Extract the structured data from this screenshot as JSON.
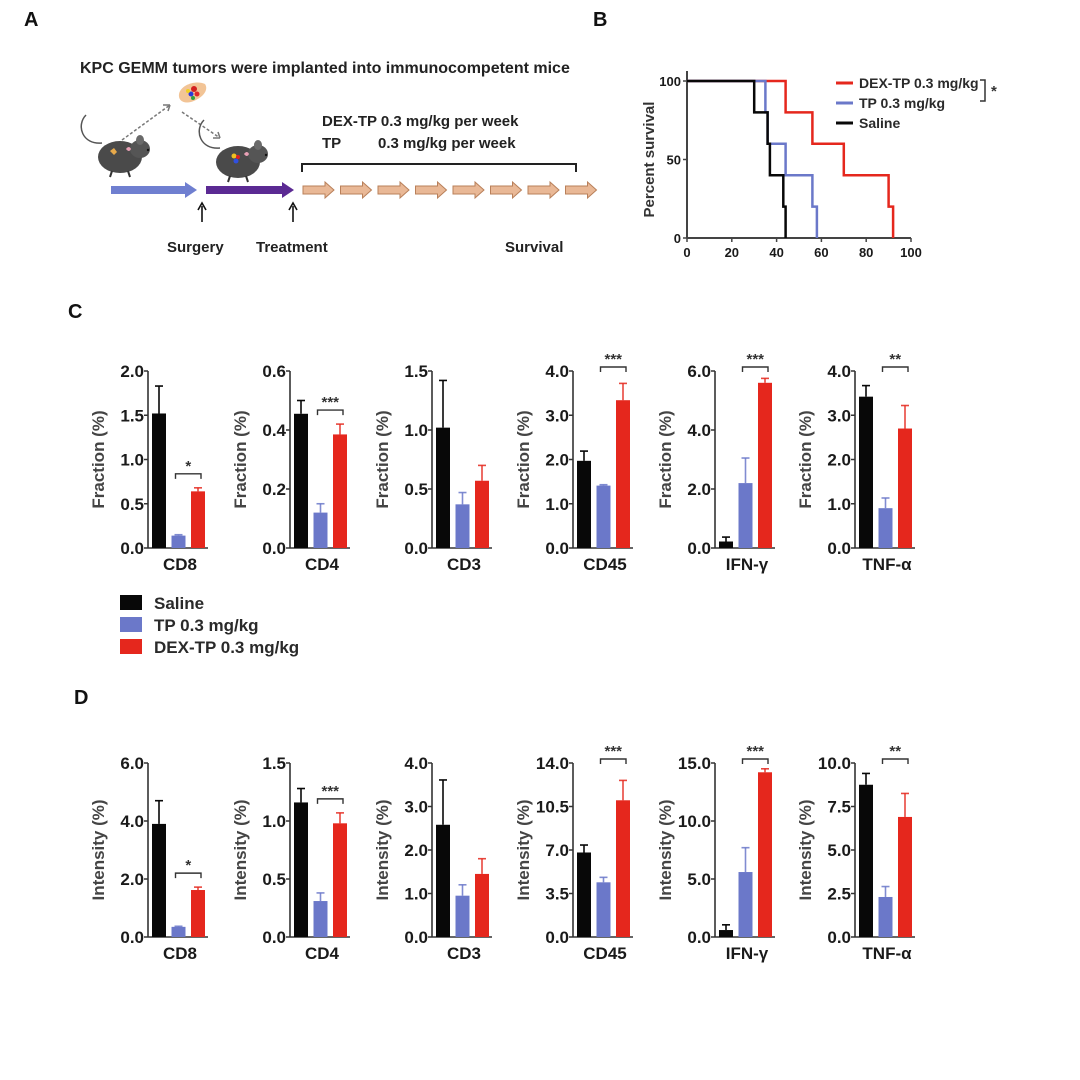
{
  "panels": {
    "A": "A",
    "B": "B",
    "C": "C",
    "D": "D"
  },
  "colors": {
    "saline": "#080808",
    "tp": "#6b78c9",
    "dex": "#e5271d",
    "arrow1": "#6f7fd0",
    "arrow2": "#5b2a93",
    "weekly_arrow": "#e9b896",
    "weekly_arrow_stroke": "#b9805a"
  },
  "schematic": {
    "title": "KPC GEMM tumors were implanted into immunocompetent mice",
    "dosing_line1": "DEX-TP 0.3 mg/kg per week",
    "dosing_line2_drug": "TP",
    "dosing_line2_dose": "0.3 mg/kg per week",
    "step_surgery": "Surgery",
    "step_treatment": "Treatment",
    "step_survival": "Survival",
    "weekly_doses": 8,
    "icons": [
      "mouse-icon",
      "tumor-icon",
      "mouse-icon"
    ]
  },
  "legend_c": [
    {
      "key": "saline",
      "label": "Saline"
    },
    {
      "key": "tp",
      "label": "TP 0.3 mg/kg"
    },
    {
      "key": "dex",
      "label": "DEX-TP 0.3 mg/kg"
    }
  ],
  "chart_data": [
    {
      "id": "B",
      "type": "line",
      "subtype": "kaplan-meier",
      "title": "",
      "xlabel": "",
      "ylabel": "Percent survival",
      "xlim": [
        0,
        100
      ],
      "ylim": [
        0,
        100
      ],
      "xticks": [
        "0",
        "20",
        "40",
        "60",
        "80",
        "100"
      ],
      "yticks": [
        "0",
        "50",
        "100"
      ],
      "legend_position": "top-right",
      "significance": "*",
      "series": [
        {
          "key": "dex",
          "name": "DEX-TP 0.3 mg/kg",
          "steps": [
            [
              0,
              100
            ],
            [
              44,
              100
            ],
            [
              44,
              80
            ],
            [
              56,
              80
            ],
            [
              56,
              60
            ],
            [
              70,
              60
            ],
            [
              70,
              40
            ],
            [
              90,
              40
            ],
            [
              90,
              20
            ],
            [
              92,
              20
            ],
            [
              92,
              0
            ]
          ]
        },
        {
          "key": "tp",
          "name": "TP 0.3 mg/kg",
          "steps": [
            [
              0,
              100
            ],
            [
              35,
              100
            ],
            [
              35,
              80
            ],
            [
              36,
              80
            ],
            [
              36,
              60
            ],
            [
              44,
              60
            ],
            [
              44,
              40
            ],
            [
              56,
              40
            ],
            [
              56,
              20
            ],
            [
              58,
              20
            ],
            [
              58,
              0
            ]
          ]
        },
        {
          "key": "saline",
          "name": "Saline",
          "steps": [
            [
              0,
              100
            ],
            [
              30,
              100
            ],
            [
              30,
              80
            ],
            [
              36,
              80
            ],
            [
              36,
              60
            ],
            [
              37,
              60
            ],
            [
              37,
              40
            ],
            [
              43,
              40
            ],
            [
              43,
              20
            ],
            [
              44,
              20
            ],
            [
              44,
              0
            ]
          ]
        }
      ]
    },
    {
      "id": "C",
      "type": "bar",
      "ylabel": "Fraction (%)",
      "series_keys": [
        "saline",
        "tp",
        "dex"
      ],
      "series_names": [
        "Saline",
        "TP 0.3 mg/kg",
        "DEX-TP 0.3 mg/kg"
      ],
      "subplots": [
        {
          "category": "CD8",
          "ylim": [
            0,
            2.0
          ],
          "yticks": [
            "0.0",
            "0.5",
            "1.0",
            "1.5",
            "2.0"
          ],
          "values": [
            1.52,
            0.14,
            0.64
          ],
          "errors": [
            0.31,
            0.01,
            0.04
          ],
          "sig": "*"
        },
        {
          "category": "CD4",
          "ylim": [
            0,
            0.6
          ],
          "yticks": [
            "0.0",
            "0.2",
            "0.4",
            "0.6"
          ],
          "values": [
            0.455,
            0.12,
            0.385
          ],
          "errors": [
            0.045,
            0.03,
            0.035
          ],
          "sig": "***"
        },
        {
          "category": "CD3",
          "ylim": [
            0,
            1.5
          ],
          "yticks": [
            "0.0",
            "0.5",
            "1.0",
            "1.5"
          ],
          "values": [
            1.02,
            0.37,
            0.57
          ],
          "errors": [
            0.4,
            0.1,
            0.13
          ],
          "sig": ""
        },
        {
          "category": "CD45",
          "ylim": [
            0,
            4.0
          ],
          "yticks": [
            "0.0",
            "1.0",
            "2.0",
            "3.0",
            "4.0"
          ],
          "values": [
            1.97,
            1.41,
            3.34
          ],
          "errors": [
            0.22,
            0.02,
            0.38
          ],
          "sig": "***"
        },
        {
          "category": "IFN-γ",
          "ylim": [
            0,
            6.0
          ],
          "yticks": [
            "0.0",
            "2.0",
            "4.0",
            "6.0"
          ],
          "values": [
            0.22,
            2.2,
            5.6
          ],
          "errors": [
            0.15,
            0.85,
            0.15
          ],
          "sig": "***"
        },
        {
          "category": "TNF-α",
          "ylim": [
            0,
            4.0
          ],
          "yticks": [
            "0.0",
            "1.0",
            "2.0",
            "3.0",
            "4.0"
          ],
          "values": [
            3.42,
            0.9,
            2.7
          ],
          "errors": [
            0.25,
            0.23,
            0.52
          ],
          "sig": "**"
        }
      ]
    },
    {
      "id": "D",
      "type": "bar",
      "ylabel": "Intensity (%)",
      "series_keys": [
        "saline",
        "tp",
        "dex"
      ],
      "series_names": [
        "Saline",
        "TP 0.3 mg/kg",
        "DEX-TP 0.3 mg/kg"
      ],
      "subplots": [
        {
          "category": "CD8",
          "ylim": [
            0,
            6.0
          ],
          "yticks": [
            "0.0",
            "2.0",
            "4.0",
            "6.0"
          ],
          "values": [
            3.9,
            0.35,
            1.62
          ],
          "errors": [
            0.8,
            0.02,
            0.1
          ],
          "sig": "*"
        },
        {
          "category": "CD4",
          "ylim": [
            0,
            1.5
          ],
          "yticks": [
            "0.0",
            "0.5",
            "1.0",
            "1.5"
          ],
          "values": [
            1.16,
            0.31,
            0.98
          ],
          "errors": [
            0.12,
            0.07,
            0.09
          ],
          "sig": "***"
        },
        {
          "category": "CD3",
          "ylim": [
            0,
            4.0
          ],
          "yticks": [
            "0.0",
            "1.0",
            "2.0",
            "3.0",
            "4.0"
          ],
          "values": [
            2.58,
            0.95,
            1.45
          ],
          "errors": [
            1.03,
            0.25,
            0.35
          ],
          "sig": ""
        },
        {
          "category": "CD45",
          "ylim": [
            0,
            14.0
          ],
          "yticks": [
            "0.0",
            "3.5",
            "7.0",
            "10.5",
            "14.0"
          ],
          "values": [
            6.8,
            4.4,
            11.0
          ],
          "errors": [
            0.6,
            0.4,
            1.6
          ],
          "sig": "***"
        },
        {
          "category": "IFN-γ",
          "ylim": [
            0,
            15.0
          ],
          "yticks": [
            "0.0",
            "5.0",
            "10.0",
            "15.0"
          ],
          "values": [
            0.6,
            5.6,
            14.2
          ],
          "errors": [
            0.45,
            2.1,
            0.3
          ],
          "sig": "***"
        },
        {
          "category": "TNF-α",
          "ylim": [
            0,
            10.0
          ],
          "yticks": [
            "0.0",
            "2.5",
            "5.0",
            "7.5",
            "10.0"
          ],
          "values": [
            8.75,
            2.3,
            6.9
          ],
          "errors": [
            0.65,
            0.6,
            1.35
          ],
          "sig": "**"
        }
      ]
    }
  ]
}
